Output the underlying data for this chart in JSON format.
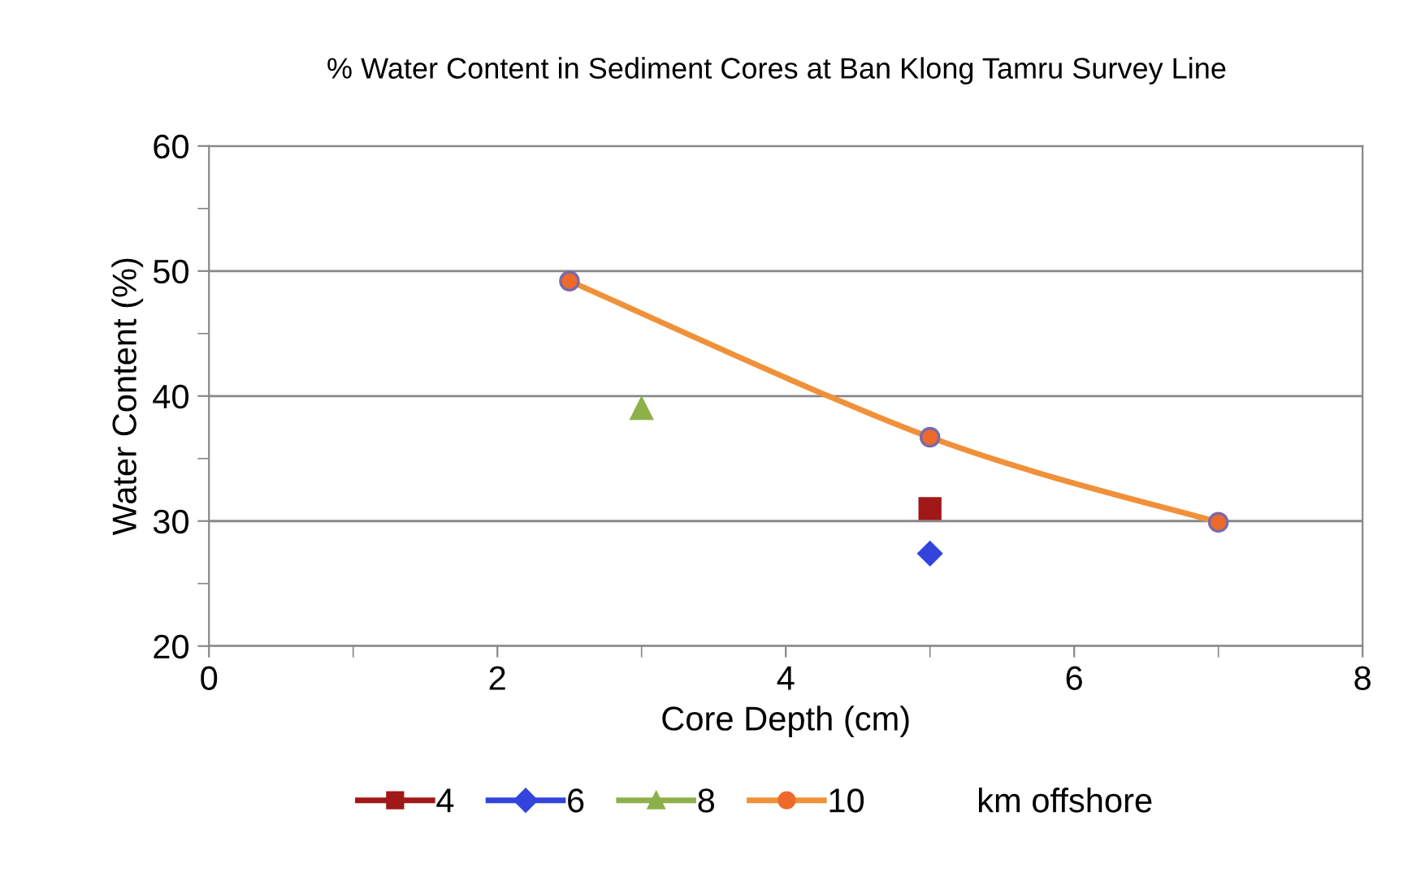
{
  "chart_data": {
    "type": "line",
    "title": "% Water Content in Sediment Cores at Ban Klong Tamru Survey Line",
    "xlabel": "Core Depth (cm)",
    "ylabel": "Water Content (%)",
    "legend_title": "km offshore",
    "xlim": [
      0,
      8
    ],
    "xticks": [
      0,
      {
        "value": 1,
        "label": null
      },
      2,
      {
        "value": 3,
        "label": null
      },
      4,
      {
        "value": 5,
        "label": null
      },
      6,
      {
        "value": 7,
        "label": null
      },
      8
    ],
    "ylim": [
      20,
      60
    ],
    "yticks": [
      20,
      {
        "value": 25,
        "label": null
      },
      30,
      {
        "value": 35,
        "label": null
      },
      40,
      {
        "value": 45,
        "label": null
      },
      50,
      {
        "value": 55,
        "label": null
      },
      60
    ],
    "grid": "y",
    "legend": "bottom",
    "line_style": "solid",
    "series": [
      {
        "name": "4",
        "color": "#a01818",
        "marker": "square",
        "x": [
          5
        ],
        "values": [
          31.0
        ]
      },
      {
        "name": "6",
        "color": "#3344dd",
        "marker": "diamond",
        "x": [
          5
        ],
        "values": [
          27.4
        ]
      },
      {
        "name": "8",
        "color": "#8db04a",
        "marker": "triangle",
        "x": [
          3
        ],
        "values": [
          39.0
        ]
      },
      {
        "name": "10",
        "color": "#f0913a",
        "marker": "circle",
        "x": [
          2.5,
          5,
          7
        ],
        "values": [
          49.2,
          36.7,
          29.9
        ]
      }
    ]
  }
}
